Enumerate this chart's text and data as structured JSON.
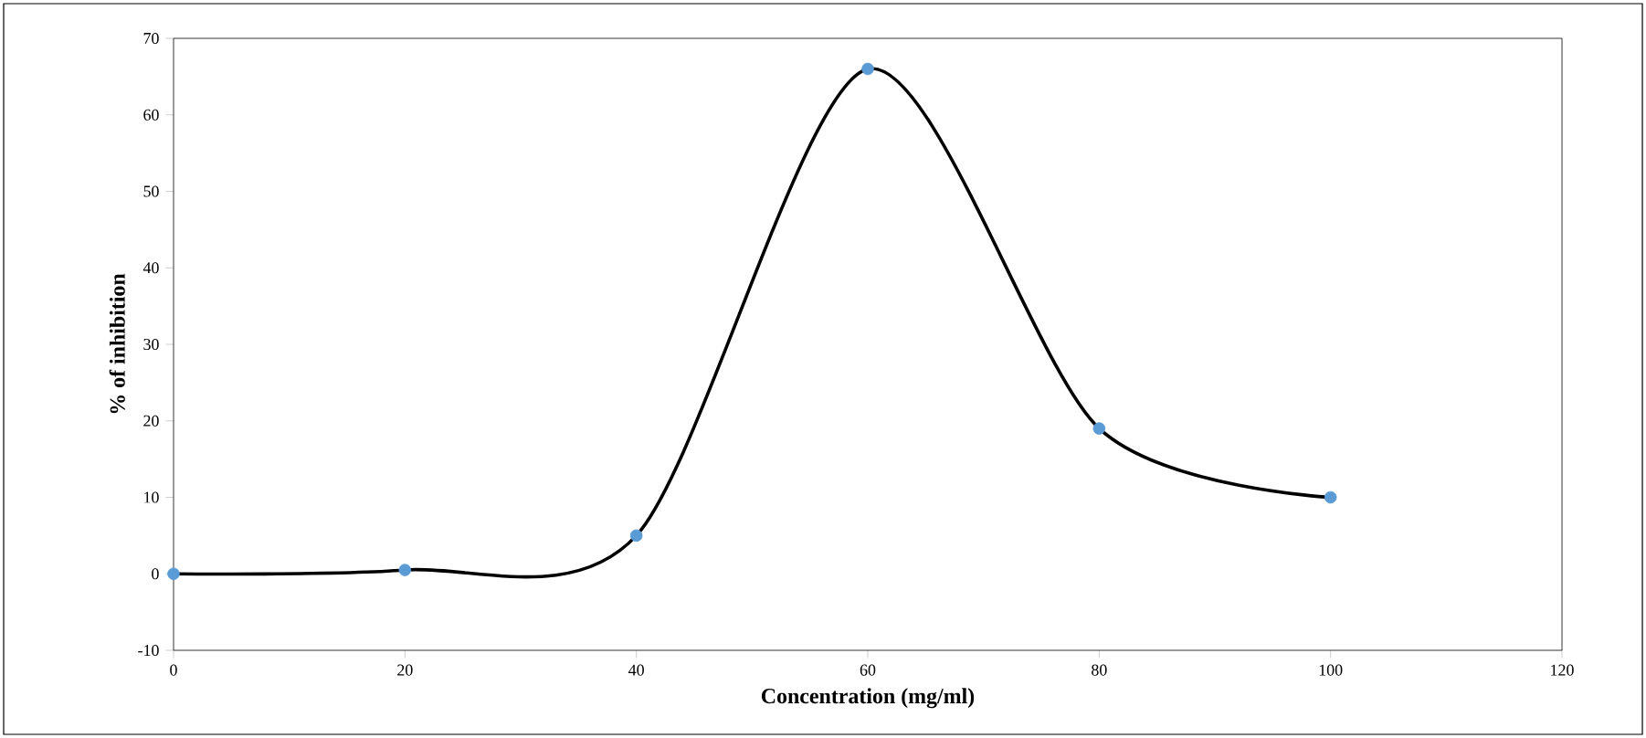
{
  "chart_data": {
    "type": "line",
    "xlabel": "Concentration  (mg/ml)",
    "ylabel": "% of inhibition",
    "x": [
      0,
      20,
      40,
      60,
      80,
      100
    ],
    "series": [
      {
        "color": "#000000",
        "marker": "none",
        "values": [
          0,
          0.5,
          5,
          66,
          19,
          10
        ]
      },
      {
        "type": "scatter",
        "color": "#5b9bd5",
        "marker": "circle",
        "values": [
          0,
          0.5,
          5,
          66,
          19,
          10
        ]
      }
    ],
    "xlim": [
      0,
      120
    ],
    "xticks": [
      0,
      20,
      40,
      60,
      80,
      100,
      120
    ],
    "ylim": [
      -10,
      70
    ],
    "yticks": [
      -10,
      0,
      10,
      20,
      30,
      40,
      50,
      60,
      70
    ],
    "grid": false
  }
}
